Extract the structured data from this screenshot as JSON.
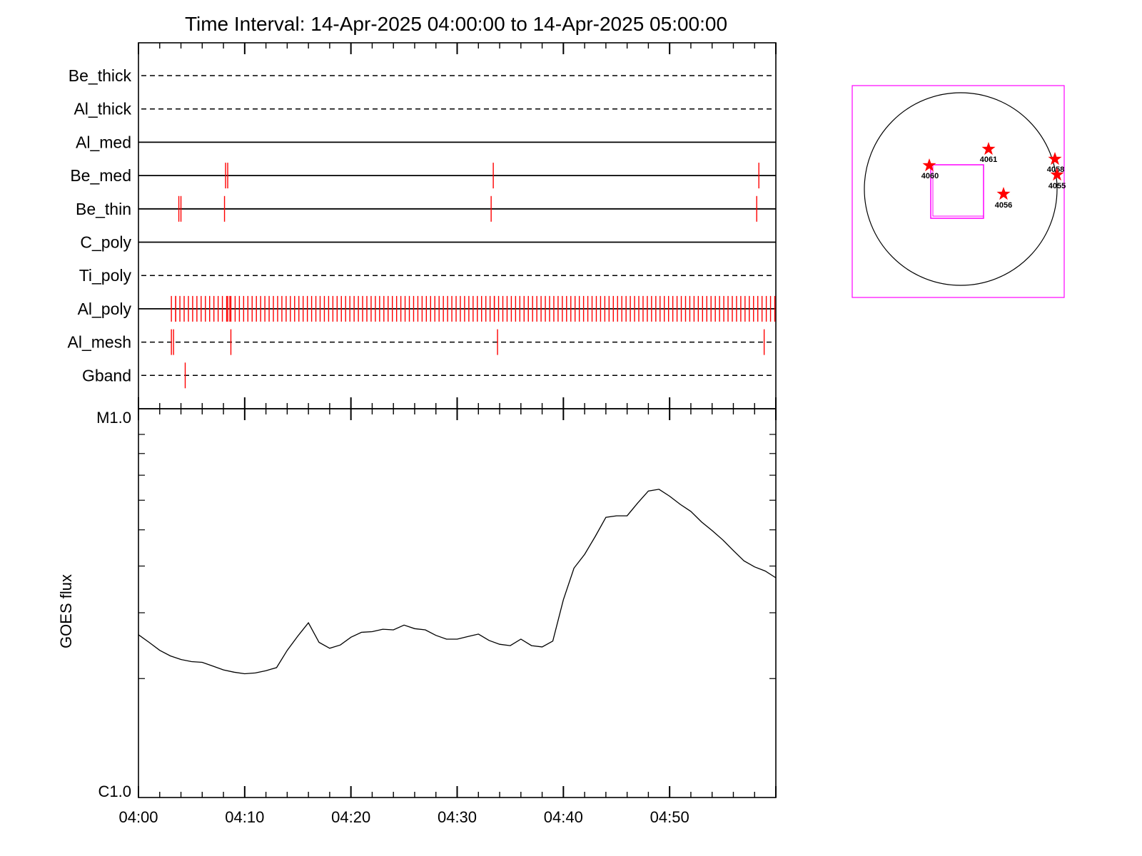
{
  "colors": {
    "event": "#ff0000",
    "line": "#000000",
    "fov_box": "#ff00ff",
    "star": "#ff0000"
  },
  "chart_data": [
    {
      "type": "line",
      "title": "Time Interval: 14-Apr-2025 04:00:00 to 14-Apr-2025 05:00:00",
      "xlabel": "",
      "ylabel": "GOES flux",
      "x_unit": "minutes after 04:00",
      "xlim": [
        0,
        60
      ],
      "xticks": [
        {
          "t": 0,
          "label": "04:00"
        },
        {
          "t": 10,
          "label": "04:10"
        },
        {
          "t": 20,
          "label": "04:20"
        },
        {
          "t": 30,
          "label": "04:30"
        },
        {
          "t": 40,
          "label": "04:40"
        },
        {
          "t": 50,
          "label": "04:50"
        }
      ],
      "y_scale": "log",
      "ylim_labels": [
        "C1.0",
        "M1.0"
      ],
      "y_range_log10": [
        -6,
        -5
      ],
      "event_panel": {
        "channels": [
          {
            "name": "Be_thick",
            "line": "dashed",
            "events": []
          },
          {
            "name": "Al_thick",
            "line": "dashed",
            "events": []
          },
          {
            "name": "Al_med",
            "line": "solid",
            "events": []
          },
          {
            "name": "Be_med",
            "line": "solid",
            "events": [
              8.2,
              8.4,
              33.4,
              58.4
            ]
          },
          {
            "name": "Be_thin",
            "line": "solid",
            "events": [
              3.8,
              4.0,
              8.1,
              33.2,
              58.2
            ]
          },
          {
            "name": "C_poly",
            "line": "solid",
            "events": []
          },
          {
            "name": "Ti_poly",
            "line": "dashed",
            "events": []
          },
          {
            "name": "Al_poly",
            "line": "solid",
            "events": "dense",
            "event_start": 3.1,
            "event_end": 60.0,
            "event_step": 0.4
          },
          {
            "name": "Al_mesh",
            "line": "dashed",
            "events": [
              3.1,
              3.3,
              8.7,
              33.8,
              58.9
            ]
          },
          {
            "name": "Gband",
            "line": "dashed",
            "events": [
              4.4
            ]
          }
        ]
      },
      "series": [
        {
          "x": [
            0,
            1,
            2,
            3,
            4,
            5,
            6,
            7,
            8,
            9,
            10,
            11,
            12,
            13,
            14,
            15,
            16,
            17,
            18,
            19,
            20,
            21,
            22,
            23,
            24,
            25,
            26,
            27,
            28,
            29,
            30,
            31,
            32,
            33,
            34,
            35,
            36,
            37,
            38,
            39,
            40,
            41,
            42,
            43,
            44,
            45,
            46,
            47,
            48,
            49,
            50,
            51,
            52,
            53,
            54,
            55,
            56,
            57,
            58,
            59,
            60
          ],
          "y": [
            2.62e-06,
            2.5e-06,
            2.38e-06,
            2.3e-06,
            2.25e-06,
            2.22e-06,
            2.21e-06,
            2.16e-06,
            2.11e-06,
            2.08e-06,
            2.06e-06,
            2.07e-06,
            2.1e-06,
            2.14e-06,
            2.38e-06,
            2.6e-06,
            2.82e-06,
            2.5e-06,
            2.41e-06,
            2.46e-06,
            2.58e-06,
            2.66e-06,
            2.67e-06,
            2.71e-06,
            2.7e-06,
            2.78e-06,
            2.72e-06,
            2.7e-06,
            2.61e-06,
            2.55e-06,
            2.55e-06,
            2.59e-06,
            2.63e-06,
            2.53e-06,
            2.47e-06,
            2.45e-06,
            2.55e-06,
            2.45e-06,
            2.43e-06,
            2.52e-06,
            3.25e-06,
            3.95e-06,
            4.3e-06,
            4.8e-06,
            5.4e-06,
            5.45e-06,
            5.45e-06,
            5.9e-06,
            6.35e-06,
            6.42e-06,
            6.15e-06,
            5.85e-06,
            5.6e-06,
            5.25e-06,
            4.98e-06,
            4.7e-06,
            4.4e-06,
            4.13e-06,
            3.98e-06,
            3.88e-06,
            3.72e-06
          ]
        }
      ]
    },
    {
      "type": "scatter",
      "labels": [
        "4060",
        "4061",
        "4058",
        "4055",
        "4056"
      ]
    }
  ]
}
